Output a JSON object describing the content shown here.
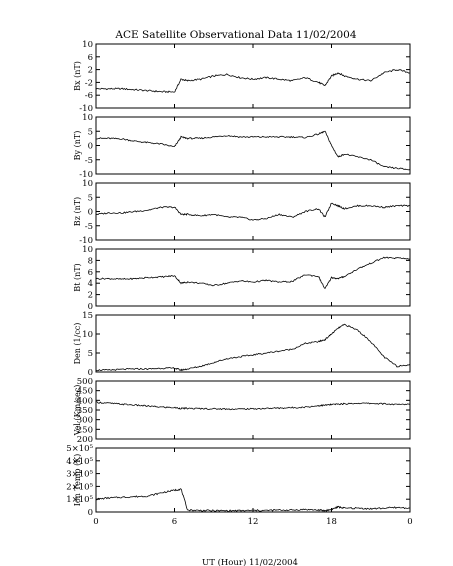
{
  "chart_data": [
    {
      "type": "line",
      "title": "ACE Satellite Observational Data   11/02/2004",
      "ylabel": "Bx (nT)",
      "ylim": [
        -10,
        10
      ],
      "yticks": [
        "10",
        "6",
        "2",
        "-2",
        "-6",
        "-10"
      ],
      "yticks_values": [
        10,
        6,
        2,
        -2,
        -6,
        -10
      ],
      "series": [
        {
          "x": [
            0,
            1,
            2,
            3,
            4,
            5,
            6,
            6.5,
            7,
            8,
            9,
            10,
            11,
            12,
            13,
            14,
            15,
            16,
            17,
            17.5,
            18,
            18.5,
            19,
            20,
            21,
            22,
            23,
            24
          ],
          "y": [
            -4,
            -4,
            -4,
            -4.3,
            -4.6,
            -4.9,
            -5,
            -1,
            -1.5,
            -1,
            0,
            0.5,
            -0.5,
            -1,
            -0.5,
            -1,
            -1.5,
            -0.5,
            -2,
            -3,
            0,
            1,
            0,
            -1,
            -1.5,
            1,
            2,
            1
          ]
        }
      ]
    },
    {
      "type": "line",
      "ylabel": "By (nT)",
      "ylim": [
        -10,
        10
      ],
      "yticks": [
        "10",
        "5",
        "0",
        "-5",
        "-10"
      ],
      "yticks_values": [
        10,
        5,
        0,
        -5,
        -10
      ],
      "series": [
        {
          "x": [
            0,
            1,
            2,
            3,
            4,
            5,
            6,
            6.5,
            7,
            8,
            9,
            10,
            11,
            12,
            13,
            14,
            15,
            16,
            17,
            17.5,
            18,
            18.5,
            19,
            20,
            21,
            22,
            23,
            24
          ],
          "y": [
            2.5,
            2.5,
            2.3,
            1.5,
            1,
            0.5,
            -0.5,
            3,
            2.5,
            2.5,
            3,
            3.5,
            3,
            3,
            3,
            3,
            3,
            2.8,
            4,
            5,
            0,
            -4,
            -3,
            -4,
            -5,
            -7.5,
            -8,
            -8.5
          ]
        }
      ]
    },
    {
      "type": "line",
      "ylabel": "Bz (nT)",
      "ylim": [
        -10,
        10
      ],
      "yticks": [
        "10",
        "5",
        "0",
        "-5",
        "-10"
      ],
      "yticks_values": [
        10,
        5,
        0,
        -5,
        -10
      ],
      "series": [
        {
          "x": [
            0,
            1,
            2,
            3,
            4,
            5,
            6,
            6.5,
            7,
            8,
            9,
            10,
            11,
            12,
            13,
            14,
            15,
            16,
            17,
            17.5,
            18,
            18.5,
            19,
            20,
            21,
            22,
            23,
            24
          ],
          "y": [
            -1,
            -0.5,
            -0.5,
            0,
            0.5,
            1.5,
            1.5,
            -1,
            -1,
            -1.5,
            -1,
            -2,
            -2,
            -3,
            -2.5,
            -1,
            -2,
            0,
            1,
            -2,
            3,
            2,
            1,
            2,
            2,
            1.5,
            2,
            2
          ]
        }
      ]
    },
    {
      "type": "line",
      "ylabel": "Bt (nT)",
      "ylim": [
        0,
        10
      ],
      "yticks": [
        "10",
        "8",
        "6",
        "4",
        "2",
        "0"
      ],
      "yticks_values": [
        10,
        8,
        6,
        4,
        2,
        0
      ],
      "series": [
        {
          "x": [
            0,
            1,
            2,
            3,
            4,
            5,
            6,
            6.5,
            7,
            8,
            9,
            10,
            11,
            12,
            13,
            14,
            15,
            16,
            17,
            17.5,
            18,
            18.5,
            19,
            20,
            21,
            22,
            23,
            24
          ],
          "y": [
            4.8,
            4.8,
            4.7,
            4.8,
            5,
            5.1,
            5.3,
            4,
            4.2,
            4,
            3.6,
            4,
            4.4,
            4.2,
            4.5,
            4.2,
            4.3,
            5.5,
            5.2,
            3,
            5,
            4.8,
            5.2,
            6.5,
            7.5,
            8.5,
            8.4,
            8.3
          ]
        }
      ]
    },
    {
      "type": "line",
      "ylabel": "Den (1/cc)",
      "ylim": [
        0,
        15
      ],
      "yticks": [
        "15",
        "10",
        "5",
        "0"
      ],
      "yticks_values": [
        15,
        10,
        5,
        0
      ],
      "series": [
        {
          "x": [
            0,
            1,
            2,
            3,
            4,
            5,
            6,
            6.5,
            7,
            8,
            9,
            10,
            11,
            12,
            13,
            14,
            15,
            16,
            17,
            17.5,
            18,
            18.5,
            19,
            20,
            21,
            22,
            23,
            24
          ],
          "y": [
            0.5,
            0.5,
            0.7,
            0.8,
            0.8,
            1,
            1,
            0.5,
            0.8,
            1.5,
            2.5,
            3.5,
            4,
            4.5,
            5,
            5.5,
            6,
            7.5,
            8,
            8.5,
            10,
            11.5,
            12.5,
            11,
            8,
            4,
            1.5,
            2
          ]
        }
      ]
    },
    {
      "type": "line",
      "ylabel": "Vel (Km/sec)",
      "ylim": [
        200,
        500
      ],
      "yticks": [
        "500",
        "450",
        "400",
        "350",
        "300",
        "250",
        "200"
      ],
      "yticks_values": [
        500,
        450,
        400,
        350,
        300,
        250,
        200
      ],
      "series": [
        {
          "x": [
            0,
            1,
            2,
            3,
            4,
            5,
            6,
            6.5,
            7,
            8,
            9,
            10,
            11,
            12,
            13,
            14,
            15,
            16,
            17,
            17.5,
            18,
            18.5,
            19,
            20,
            21,
            22,
            23,
            24
          ],
          "y": [
            390,
            385,
            380,
            375,
            370,
            365,
            362,
            358,
            358,
            357,
            356,
            355,
            355,
            356,
            358,
            360,
            362,
            365,
            372,
            375,
            378,
            380,
            382,
            385,
            384,
            382,
            378,
            380
          ]
        }
      ]
    },
    {
      "type": "line",
      "ylabel": "Ion Temp (K)",
      "ylim": [
        0,
        500000
      ],
      "yticks": [
        "5×10⁵",
        "4×10⁵",
        "3×10⁵",
        "2×10⁵",
        "1×10⁵",
        "0"
      ],
      "yticks_values": [
        500000,
        400000,
        300000,
        200000,
        100000,
        0
      ],
      "xlabel": "UT (Hour)   11/02/2004",
      "xticks": [
        "0",
        "6",
        "12",
        "18",
        "0"
      ],
      "xticks_values": [
        0,
        6,
        12,
        18,
        24
      ],
      "series": [
        {
          "x": [
            0,
            1,
            2,
            3,
            4,
            5,
            6,
            6.5,
            7,
            8,
            9,
            10,
            11,
            12,
            13,
            14,
            15,
            16,
            17,
            17.5,
            18,
            18.5,
            19,
            20,
            21,
            22,
            23,
            24
          ],
          "y": [
            100000,
            110000,
            115000,
            120000,
            125000,
            150000,
            170000,
            180000,
            15000,
            12000,
            10000,
            10000,
            10000,
            12000,
            12000,
            15000,
            15000,
            20000,
            15000,
            10000,
            20000,
            40000,
            30000,
            30000,
            25000,
            30000,
            35000,
            30000
          ]
        }
      ]
    }
  ]
}
